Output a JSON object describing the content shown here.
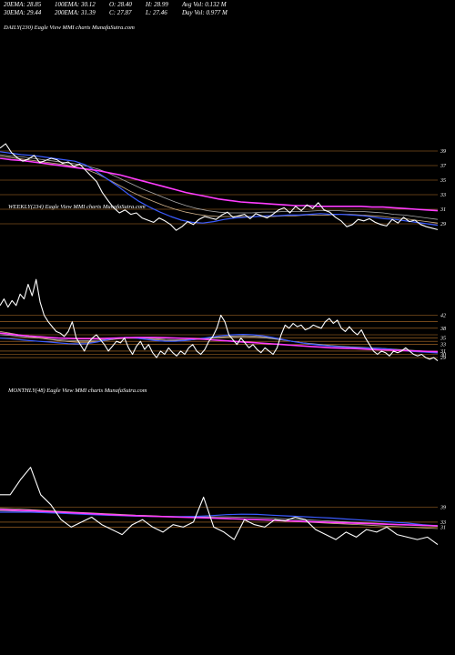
{
  "stats": {
    "ema20": "20EMA: 28.85",
    "ema100": "100EMA: 30.12",
    "open": "O: 28.40",
    "high": "H: 28.99",
    "avg_vol": "Avg Vol: 0.132  M",
    "ema30": "30EMA: 29.44",
    "ema200": "200EMA: 31.39",
    "close": "C: 27.87",
    "low": "L: 27.46",
    "day_vol": "Day Vol: 0.977  M"
  },
  "colors": {
    "background": "#000000",
    "price": "#ffffff",
    "ema_blue": "#3a5bff",
    "ema_magenta": "#ff3cff",
    "ema_tan": "#d2b48c",
    "ema_gray": "#aaaaaa",
    "level_line": "#b8742a"
  },
  "chart_data": [
    {
      "type": "line",
      "title": "DAILY(230) Eagle   View  MMI charts MunafaSutra.com",
      "xlabel": "",
      "ylabel": "",
      "ylim": [
        27,
        41
      ],
      "y_ticks": [
        39,
        37,
        35,
        33,
        31,
        29
      ],
      "levels": [
        39,
        37,
        35,
        33,
        31,
        29
      ],
      "series": [
        {
          "role": "price",
          "values": [
            39.4,
            40.0,
            38.8,
            38.1,
            37.6,
            37.9,
            38.4,
            37.4,
            37.7,
            38.0,
            37.8,
            37.3,
            37.5,
            36.9,
            37.2,
            36.4,
            35.6,
            34.8,
            33.3,
            32.2,
            31.2,
            30.5,
            30.9,
            30.3,
            30.5,
            29.8,
            29.5,
            29.2,
            29.8,
            29.4,
            28.9,
            28.1,
            28.6,
            29.3,
            28.9,
            29.6,
            30.0,
            29.8,
            29.6,
            30.2,
            30.6,
            29.9,
            30.1,
            30.3,
            29.7,
            30.4,
            30.1,
            29.8,
            30.3,
            30.9,
            31.2,
            30.5,
            31.4,
            30.8,
            31.6,
            31.1,
            31.9,
            30.9,
            30.6,
            29.9,
            29.4,
            28.6,
            28.9,
            29.6,
            29.4,
            29.7,
            29.2,
            28.9,
            28.7,
            29.6,
            29.1,
            29.9,
            29.3,
            29.5,
            28.9,
            28.6,
            28.4,
            28.2
          ]
        },
        {
          "role": "ema_blue",
          "values": [
            38.9,
            38.7,
            38.5,
            38.4,
            38.2,
            38.0,
            37.8,
            37.6,
            37.1,
            36.2,
            35.2,
            34.2,
            33.1,
            32.1,
            31.3,
            30.6,
            30.0,
            29.5,
            29.2,
            29.1,
            29.3,
            29.6,
            29.8,
            29.9,
            30.0,
            30.1,
            30.1,
            30.2,
            30.2,
            30.3,
            30.4,
            30.3,
            30.3,
            30.2,
            30.1,
            29.9,
            29.7,
            29.6,
            29.4,
            29.2,
            29.0,
            28.8
          ]
        },
        {
          "role": "ema_magenta",
          "values": [
            38.0,
            37.8,
            37.7,
            37.5,
            37.3,
            37.1,
            36.9,
            36.7,
            36.5,
            36.3,
            36.0,
            35.7,
            35.3,
            34.9,
            34.5,
            34.1,
            33.7,
            33.3,
            33.0,
            32.7,
            32.4,
            32.2,
            32.0,
            31.9,
            31.8,
            31.7,
            31.6,
            31.5,
            31.5,
            31.4,
            31.4,
            31.4,
            31.4,
            31.4,
            31.3,
            31.3,
            31.2,
            31.1,
            31.0,
            30.9,
            30.8
          ]
        },
        {
          "role": "ema_tan",
          "values": [
            38.3,
            38.1,
            37.9,
            37.7,
            37.5,
            37.3,
            37.1,
            36.8,
            36.4,
            35.8,
            35.0,
            34.2,
            33.4,
            32.7,
            32.1,
            31.5,
            31.0,
            30.6,
            30.3,
            30.1,
            30.0,
            30.0,
            30.0,
            30.0,
            30.0,
            30.0,
            30.1,
            30.1,
            30.2,
            30.2,
            30.2,
            30.3,
            30.3,
            30.2,
            30.1,
            30.0,
            29.8,
            29.7,
            29.5,
            29.3,
            29.1
          ]
        },
        {
          "role": "ema_gray",
          "values": [
            38.5,
            38.3,
            38.2,
            38.0,
            37.8,
            37.6,
            37.4,
            37.2,
            36.9,
            36.5,
            35.9,
            35.2,
            34.5,
            33.8,
            33.2,
            32.6,
            32.0,
            31.5,
            31.1,
            30.8,
            30.6,
            30.5,
            30.5,
            30.5,
            30.6,
            30.6,
            30.7,
            30.7,
            30.7,
            30.8,
            30.8,
            30.8,
            30.7,
            30.7,
            30.6,
            30.5,
            30.3,
            30.2,
            30.0,
            29.8,
            29.6
          ]
        }
      ]
    },
    {
      "type": "line",
      "title": "WEEKLY(234) Eagle   View  MMI charts MunafaSutra.com",
      "xlabel": "",
      "ylabel": "",
      "ylim": [
        26.5,
        55
      ],
      "y_ticks": [
        42,
        38,
        35,
        33,
        31,
        30,
        29
      ],
      "levels": [
        42,
        40,
        38,
        36,
        35,
        34,
        33,
        31,
        30,
        29
      ],
      "series": [
        {
          "role": "price",
          "values": [
            45.0,
            47.0,
            44.5,
            46.5,
            45.0,
            48.5,
            47.0,
            51.5,
            48.0,
            53.0,
            46.0,
            42.0,
            40.0,
            38.5,
            37.0,
            36.5,
            35.5,
            37.0,
            40.0,
            35.0,
            33.0,
            31.0,
            33.5,
            35.0,
            36.0,
            34.5,
            33.0,
            31.0,
            32.5,
            34.0,
            33.5,
            35.0,
            32.0,
            30.0,
            32.5,
            34.0,
            31.5,
            33.0,
            30.5,
            29.0,
            31.0,
            30.0,
            32.0,
            30.5,
            29.5,
            31.0,
            30.0,
            32.0,
            33.0,
            31.0,
            30.0,
            31.5,
            34.0,
            35.5,
            38.0,
            42.0,
            40.0,
            36.0,
            34.5,
            33.0,
            35.0,
            33.5,
            32.0,
            33.0,
            31.5,
            30.5,
            32.0,
            31.0,
            30.0,
            32.0,
            36.0,
            39.0,
            38.0,
            39.5,
            38.5,
            39.0,
            37.5,
            38.0,
            39.0,
            38.5,
            38.0,
            40.0,
            41.0,
            39.5,
            40.5,
            38.0,
            37.0,
            38.5,
            37.0,
            36.0,
            37.5,
            35.0,
            33.0,
            31.0,
            30.0,
            31.0,
            30.5,
            29.5,
            31.0,
            30.5,
            31.0,
            32.0,
            31.0,
            30.0,
            29.5,
            30.0,
            29.0,
            28.5,
            29.0,
            28.0
          ]
        },
        {
          "role": "ema_blue",
          "values": [
            35.0,
            34.8,
            34.5,
            34.2,
            34.0,
            33.8,
            33.5,
            33.3,
            33.2,
            33.3,
            33.8,
            34.5,
            35.0,
            35.2,
            35.0,
            34.6,
            34.2,
            34.0,
            34.0,
            34.2,
            34.6,
            35.0,
            35.4,
            35.8,
            36.0,
            36.1,
            36.0,
            35.7,
            35.2,
            34.6,
            34.0,
            33.5,
            33.1,
            32.8,
            32.5,
            32.3,
            32.1,
            32.0,
            31.9,
            31.8,
            31.6,
            31.3,
            31.0,
            30.8,
            30.6,
            30.4
          ]
        },
        {
          "role": "ema_magenta",
          "values": [
            36.5,
            36.2,
            35.9,
            35.6,
            35.4,
            35.2,
            35.0,
            34.9,
            34.8,
            34.8,
            34.8,
            34.9,
            35.0,
            35.1,
            35.2,
            35.2,
            35.2,
            35.1,
            35.0,
            34.9,
            34.8,
            34.6,
            34.4,
            34.2,
            34.0,
            33.8,
            33.6,
            33.4,
            33.2,
            33.0,
            32.8,
            32.6,
            32.4,
            32.2,
            32.0,
            31.9,
            31.8,
            31.7,
            31.5,
            31.4,
            31.3,
            31.2,
            31.1,
            31.0,
            30.9,
            30.8
          ]
        },
        {
          "role": "ema_tan",
          "values": [
            37.0,
            36.5,
            36.0,
            35.5,
            35.0,
            34.6,
            34.2,
            33.9,
            33.7,
            33.7,
            33.9,
            34.3,
            34.7,
            34.9,
            34.9,
            34.7,
            34.5,
            34.3,
            34.2,
            34.3,
            34.5,
            34.8,
            35.1,
            35.4,
            35.6,
            35.7,
            35.6,
            35.4,
            35.0,
            34.5,
            34.0,
            33.6,
            33.2,
            32.9,
            32.6,
            32.4,
            32.2,
            32.1,
            31.9,
            31.8,
            31.6,
            31.4,
            31.2,
            31.0,
            30.8,
            30.6
          ]
        },
        {
          "role": "ema_gray",
          "values": [
            36.0,
            35.8,
            35.5,
            35.2,
            35.0,
            34.7,
            34.5,
            34.3,
            34.2,
            34.2,
            34.3,
            34.6,
            34.9,
            35.1,
            35.1,
            35.0,
            34.8,
            34.6,
            34.5,
            34.5,
            34.6,
            34.8,
            35.0,
            35.2,
            35.3,
            35.4,
            35.3,
            35.1,
            34.8,
            34.4,
            34.0,
            33.6,
            33.3,
            33.0,
            32.7,
            32.5,
            32.3,
            32.2,
            32.0,
            31.9,
            31.7,
            31.5,
            31.3,
            31.1,
            30.9,
            30.7
          ]
        }
      ]
    },
    {
      "type": "line",
      "title": "MONTHLY(48) Eagle   View  MMI charts MunafaSutra.com",
      "xlabel": "",
      "ylabel": "",
      "ylim": [
        18,
        60
      ],
      "y_ticks": [
        39,
        33,
        31
      ],
      "levels": [
        39,
        33,
        31
      ],
      "series": [
        {
          "role": "price",
          "values": [
            44.0,
            44.0,
            50.0,
            55.0,
            44.0,
            40.0,
            34.0,
            31.0,
            33.0,
            35.0,
            32.0,
            30.0,
            28.0,
            32.0,
            34.0,
            31.0,
            29.0,
            32.0,
            31.0,
            33.0,
            43.0,
            31.0,
            29.0,
            26.0,
            34.0,
            32.0,
            31.0,
            34.0,
            33.5,
            35.0,
            34.0,
            30.0,
            28.0,
            26.0,
            29.0,
            27.0,
            30.0,
            29.0,
            31.0,
            28.0,
            27.0,
            26.0,
            27.0,
            24.0
          ]
        },
        {
          "role": "ema_blue",
          "values": [
            37.0,
            37.0,
            37.0,
            36.8,
            36.6,
            36.3,
            36.0,
            35.8,
            35.6,
            35.4,
            35.3,
            35.2,
            35.2,
            35.3,
            35.6,
            36.0,
            36.2,
            36.1,
            35.8,
            35.5,
            35.2,
            34.9,
            34.6,
            34.2,
            33.8,
            33.4,
            33.0,
            32.6,
            32.0,
            31.5
          ]
        },
        {
          "role": "ema_magenta",
          "values": [
            38.0,
            37.8,
            37.6,
            37.3,
            37.0,
            36.7,
            36.4,
            36.1,
            35.8,
            35.6,
            35.4,
            35.2,
            35.0,
            34.8,
            34.6,
            34.4,
            34.2,
            34.0,
            33.8,
            33.5,
            33.3,
            33.1,
            32.9,
            32.7,
            32.5,
            32.3,
            32.1,
            31.9,
            31.7,
            31.5
          ]
        },
        {
          "role": "ema_tan",
          "values": [
            38.5,
            38.3,
            38.0,
            37.6,
            37.3,
            37.0,
            36.7,
            36.4,
            36.1,
            35.8,
            35.6,
            35.3,
            35.1,
            34.9,
            34.7,
            34.5,
            34.3,
            34.0,
            33.7,
            33.4,
            33.1,
            32.8,
            32.5,
            32.2,
            31.9,
            31.6,
            31.3,
            31.0,
            30.7,
            30.4
          ]
        },
        {
          "role": "ema_gray",
          "values": [
            37.5,
            37.4,
            37.2,
            37.0,
            36.8,
            36.5,
            36.3,
            36.0,
            35.8,
            35.6,
            35.4,
            35.3,
            35.2,
            35.1,
            35.1,
            35.1,
            35.0,
            34.8,
            34.6,
            34.3,
            34.0,
            33.7,
            33.4,
            33.1,
            32.8,
            32.5,
            32.2,
            31.9,
            31.6,
            31.3
          ]
        }
      ]
    }
  ]
}
